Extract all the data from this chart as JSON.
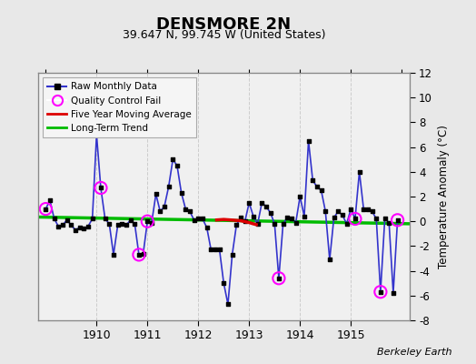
{
  "title": "DENSMORE 2N",
  "subtitle": "39.647 N, 99.745 W (United States)",
  "ylabel": "Temperature Anomaly (°C)",
  "credit": "Berkeley Earth",
  "ylim": [
    -8,
    12
  ],
  "yticks": [
    -8,
    -6,
    -4,
    -2,
    0,
    2,
    4,
    6,
    8,
    10,
    12
  ],
  "bg_color": "#e8e8e8",
  "plot_bg_color": "#f0f0f0",
  "months": [
    1909.0,
    1909.083,
    1909.167,
    1909.25,
    1909.333,
    1909.417,
    1909.5,
    1909.583,
    1909.667,
    1909.75,
    1909.833,
    1909.917,
    1910.0,
    1910.083,
    1910.167,
    1910.25,
    1910.333,
    1910.417,
    1910.5,
    1910.583,
    1910.667,
    1910.75,
    1910.833,
    1910.917,
    1911.0,
    1911.083,
    1911.167,
    1911.25,
    1911.333,
    1911.417,
    1911.5,
    1911.583,
    1911.667,
    1911.75,
    1911.833,
    1911.917,
    1912.0,
    1912.083,
    1912.167,
    1912.25,
    1912.333,
    1912.417,
    1912.5,
    1912.583,
    1912.667,
    1912.75,
    1912.833,
    1912.917,
    1913.0,
    1913.083,
    1913.167,
    1913.25,
    1913.333,
    1913.417,
    1913.5,
    1913.583,
    1913.667,
    1913.75,
    1913.833,
    1913.917,
    1914.0,
    1914.083,
    1914.167,
    1914.25,
    1914.333,
    1914.417,
    1914.5,
    1914.583,
    1914.667,
    1914.75,
    1914.833,
    1914.917,
    1915.0,
    1915.083,
    1915.167,
    1915.25,
    1915.333,
    1915.417,
    1915.5,
    1915.583,
    1915.667,
    1915.75,
    1915.833,
    1915.917
  ],
  "values": [
    1.0,
    1.7,
    0.2,
    -0.4,
    -0.3,
    0.1,
    -0.3,
    -0.7,
    -0.5,
    -0.6,
    -0.4,
    0.2,
    7.0,
    2.7,
    0.2,
    -0.2,
    -2.7,
    -0.3,
    -0.2,
    -0.3,
    0.1,
    -0.2,
    -2.7,
    -2.6,
    0.0,
    -0.1,
    2.2,
    0.8,
    1.2,
    2.8,
    5.0,
    4.5,
    2.3,
    1.0,
    0.8,
    0.1,
    0.2,
    0.2,
    -0.5,
    -2.3,
    -2.3,
    -2.3,
    -5.0,
    -6.7,
    -2.7,
    -0.3,
    0.3,
    0.0,
    1.5,
    0.4,
    -0.2,
    1.5,
    1.2,
    0.7,
    -0.2,
    -4.6,
    -0.2,
    0.3,
    0.2,
    -0.1,
    2.0,
    0.4,
    6.5,
    3.3,
    2.8,
    2.5,
    0.8,
    -3.1,
    0.3,
    0.8,
    0.5,
    -0.2,
    1.0,
    0.2,
    4.0,
    1.0,
    1.0,
    0.8,
    0.2,
    -5.7,
    0.2,
    -0.1,
    -5.8,
    0.1
  ],
  "qc_fail_indices": [
    0,
    13,
    22,
    24,
    55,
    73,
    79,
    83
  ],
  "ma_x": [
    1912.33,
    1912.5,
    1912.67,
    1912.83,
    1913.0,
    1913.08,
    1913.17
  ],
  "ma_y": [
    0.1,
    0.15,
    0.1,
    0.05,
    -0.1,
    -0.2,
    -0.3
  ],
  "trend_x": [
    1908.8,
    1916.2
  ],
  "trend_y": [
    0.35,
    -0.2
  ],
  "line_color": "#3333cc",
  "dot_color": "#000000",
  "qc_color": "#ff00ff",
  "ma_color": "#dd0000",
  "trend_color": "#00bb00",
  "xtick_years": [
    1910,
    1911,
    1912,
    1913,
    1914,
    1915
  ],
  "xlim": [
    1908.85,
    1916.15
  ]
}
